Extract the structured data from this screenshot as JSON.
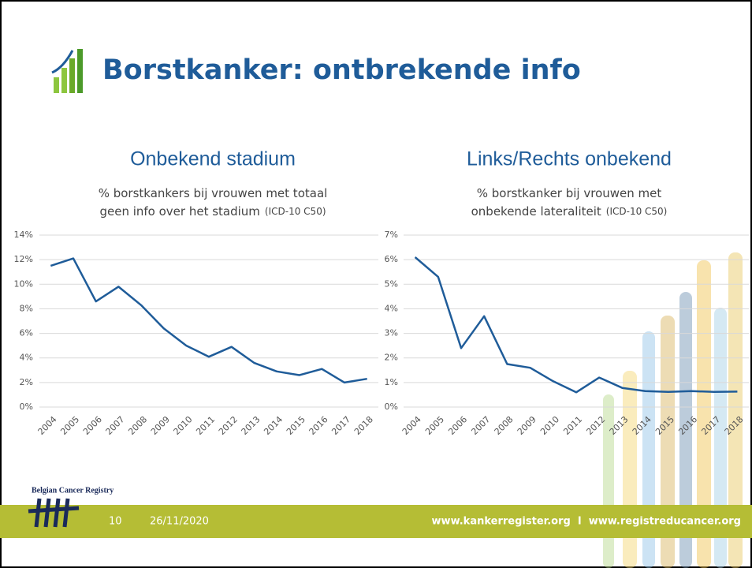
{
  "slide": {
    "title": "Borstkanker: ontbrekende info",
    "registry": "Belgian Cancer Registry",
    "page_number": "10",
    "date": "26/11/2020",
    "footer_links": "www.kankerregister.org  I  www.registreducancer.org"
  },
  "chart_data": [
    {
      "type": "line",
      "title": "Onbekend stadium",
      "subtitle": [
        "% borstkankers bij vrouwen met totaal",
        "geen info over het stadium"
      ],
      "subtitle_note": "(ICD-10 C50)",
      "categories": [
        "2004",
        "2005",
        "2006",
        "2007",
        "2008",
        "2009",
        "2010",
        "2011",
        "2012",
        "2013",
        "2014",
        "2015",
        "2016",
        "2017",
        "2018"
      ],
      "values": [
        11.5,
        12.1,
        8.6,
        9.8,
        8.3,
        6.4,
        5.0,
        4.1,
        4.9,
        3.6,
        2.9,
        2.6,
        3.1,
        2.0,
        2.3
      ],
      "color": "#1f5c99",
      "ylim": [
        0,
        14
      ],
      "yticks": [
        {
          "value": 0,
          "label": "0%"
        },
        {
          "value": 2,
          "label": "2%"
        },
        {
          "value": 4,
          "label": "4%"
        },
        {
          "value": 6,
          "label": "6%"
        },
        {
          "value": 8,
          "label": "8%"
        },
        {
          "value": 10,
          "label": "10%"
        },
        {
          "value": 12,
          "label": "12%"
        },
        {
          "value": 14,
          "label": "14%"
        }
      ],
      "grid": true
    },
    {
      "type": "line",
      "title": "Links/Rechts onbekend",
      "subtitle": [
        "% borstkanker bij vrouwen met",
        "onbekende lateraliteit"
      ],
      "subtitle_note": "(ICD-10 C50)",
      "categories": [
        "2004",
        "2005",
        "2006",
        "2007",
        "2008",
        "2009",
        "2010",
        "2011",
        "2012",
        "2013",
        "2014",
        "2015",
        "2016",
        "2017",
        "2018"
      ],
      "values": [
        6.1,
        5.3,
        2.4,
        3.7,
        1.75,
        1.6,
        1.05,
        0.6,
        1.2,
        0.78,
        0.65,
        0.62,
        0.65,
        0.62,
        0.63
      ],
      "color": "#1f5c99",
      "ylim": [
        0,
        7
      ],
      "yticks": [
        {
          "value": 0,
          "label": "0%"
        },
        {
          "value": 1,
          "label": "1%"
        },
        {
          "value": 2,
          "label": "2%"
        },
        {
          "value": 3,
          "label": "3%"
        },
        {
          "value": 4,
          "label": "4%"
        },
        {
          "value": 5,
          "label": "5%"
        },
        {
          "value": 6,
          "label": "6%"
        },
        {
          "value": 7,
          "label": "7%"
        }
      ],
      "grid": true
    }
  ]
}
